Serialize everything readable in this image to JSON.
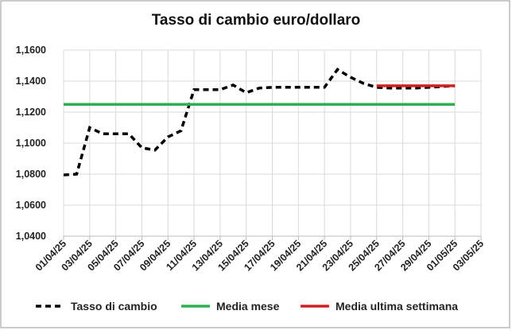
{
  "chart_data": {
    "type": "line",
    "title": "Tasso di cambio euro/dollaro",
    "series": [
      {
        "name": "Tasso di cambio",
        "color": "#000000",
        "dashed": true,
        "x": [
          "01/04/25",
          "02/04/25",
          "03/04/25",
          "04/04/25",
          "05/04/25",
          "06/04/25",
          "07/04/25",
          "08/04/25",
          "09/04/25",
          "10/04/25",
          "11/04/25",
          "12/04/25",
          "13/04/25",
          "14/04/25",
          "15/04/25",
          "16/04/25",
          "17/04/25",
          "18/04/25",
          "19/04/25",
          "20/04/25",
          "21/04/25",
          "22/04/25",
          "23/04/25",
          "24/04/25",
          "25/04/25",
          "26/04/25",
          "27/04/25",
          "28/04/25",
          "29/04/25",
          "30/04/25",
          "01/05/25"
        ],
        "values": [
          1.0795,
          1.08,
          1.11,
          1.106,
          1.106,
          1.106,
          1.097,
          1.0955,
          1.104,
          1.108,
          1.1345,
          1.1345,
          1.1345,
          1.1375,
          1.1325,
          1.1355,
          1.136,
          1.136,
          1.136,
          1.136,
          1.136,
          1.1475,
          1.1425,
          1.1385,
          1.136,
          1.1355,
          1.1355,
          1.1355,
          1.136,
          1.1365,
          1.137
        ]
      },
      {
        "name": "Media mese",
        "color": "#2eb050",
        "x": [
          "01/04/25",
          "01/05/25"
        ],
        "values": [
          1.125,
          1.125
        ]
      },
      {
        "name": "Media ultima settimana",
        "color": "#d02020",
        "x": [
          "25/04/25",
          "01/05/25"
        ],
        "values": [
          1.137,
          1.137
        ]
      }
    ],
    "xlim": [
      "01/04/25",
      "03/05/25"
    ],
    "xticks": [
      "01/04/25",
      "03/04/25",
      "05/04/25",
      "07/04/25",
      "09/04/25",
      "11/04/25",
      "13/04/25",
      "15/04/25",
      "17/04/25",
      "19/04/25",
      "21/04/25",
      "23/04/25",
      "25/04/25",
      "27/04/25",
      "29/04/25",
      "01/05/25",
      "03/05/25"
    ],
    "ylim": [
      1.04,
      1.16
    ],
    "yticks": [
      {
        "value": 1.04,
        "label": "1,0400"
      },
      {
        "value": 1.06,
        "label": "1,0600"
      },
      {
        "value": 1.08,
        "label": "1,0800"
      },
      {
        "value": 1.1,
        "label": "1,1000"
      },
      {
        "value": 1.12,
        "label": "1,1200"
      },
      {
        "value": 1.14,
        "label": "1,1400"
      },
      {
        "value": 1.16,
        "label": "1,1600"
      }
    ],
    "grid": true,
    "legend": "bottom"
  }
}
